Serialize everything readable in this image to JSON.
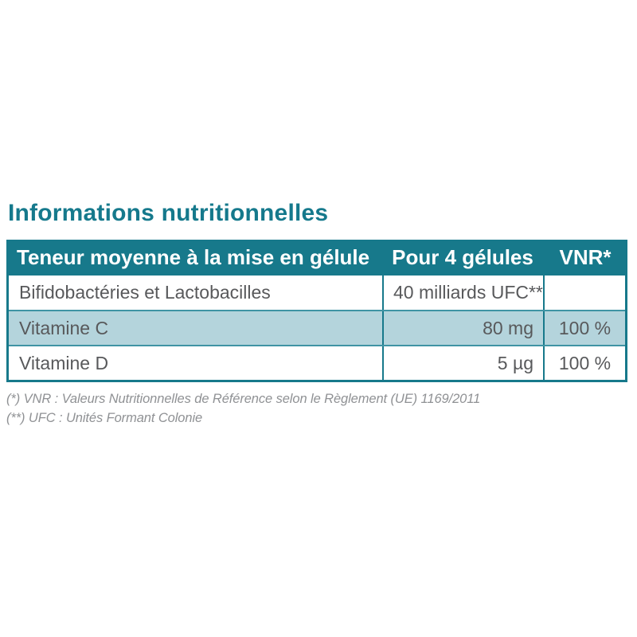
{
  "title": "Informations nutritionnelles",
  "table": {
    "header": {
      "col1": "Teneur moyenne à la mise en gélule",
      "col2": "Pour 4 gélules",
      "col3": "VNR*"
    },
    "rows": [
      {
        "name": "Bifidobactéries et Lactobacilles",
        "amount": "40 milliards UFC**",
        "vnr": ""
      },
      {
        "name": "Vitamine C",
        "amount": "80 mg",
        "vnr": "100 %"
      },
      {
        "name": "Vitamine D",
        "amount": "5 µg",
        "vnr": "100 %"
      }
    ]
  },
  "footnotes": [
    "(*) VNR : Valeurs Nutritionnelles de Référence selon le Règlement (UE) 1169/2011",
    "(**) UFC : Unités Formant Colonie"
  ],
  "colors": {
    "accent_teal": "#17798b",
    "title_teal": "#15798c",
    "row_alt_bg": "#b4d4dc",
    "row_separator": "#3f94a4",
    "body_text": "#58595b",
    "footnote_text": "#8f9194"
  }
}
